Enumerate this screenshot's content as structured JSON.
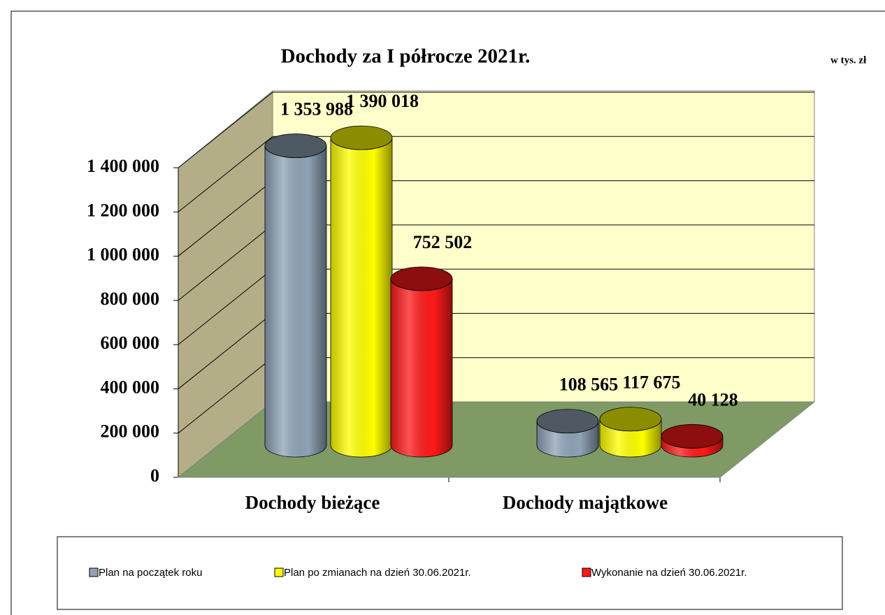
{
  "chart_data": {
    "type": "bar3d",
    "title": "Dochody za I półrocze 2021r.",
    "subtitle": "w tys. zł",
    "categories": [
      "Dochody bieżące",
      "Dochody majątkowe"
    ],
    "series": [
      {
        "name": "Plan na początek roku",
        "color": "#8fa3b6",
        "values": [
          1353988,
          108565
        ],
        "value_labels": [
          "1 353 988",
          "108 565"
        ]
      },
      {
        "name": "Plan po zmianach na dzień 30.06.2021r.",
        "color": "#ffff00",
        "values": [
          1390018,
          117675
        ],
        "value_labels": [
          "1 390 018",
          "117 675"
        ]
      },
      {
        "name": "Wykonanie na dzień 30.06.2021r.",
        "color": "#ff1a1a",
        "values": [
          752502,
          40128
        ],
        "value_labels": [
          "752 502",
          "40 128"
        ]
      }
    ],
    "ylim": [
      0,
      1400000
    ],
    "yticks": [
      0,
      {
        "value": 200000,
        "label": "200 000"
      },
      {
        "value": 400000,
        "label": "400 000"
      },
      {
        "value": 600000,
        "label": "600 000"
      },
      {
        "value": 800000,
        "label": "800 000"
      },
      {
        "value": 1000000,
        "label": "1 000 000"
      },
      {
        "value": 1200000,
        "label": "1 200 000"
      },
      {
        "value": 1400000,
        "label": "1 400 000"
      }
    ],
    "grid": true,
    "legend": "bottom"
  }
}
